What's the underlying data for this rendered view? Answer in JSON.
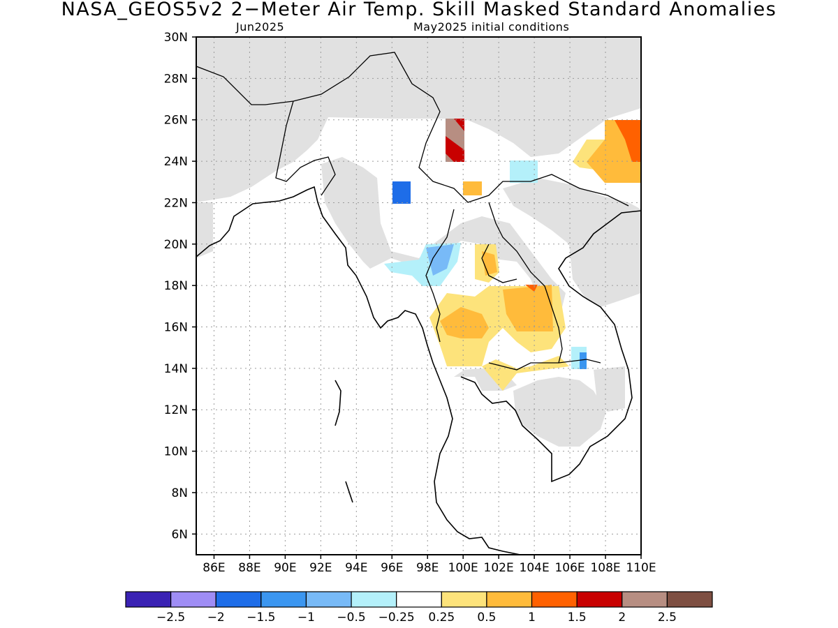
{
  "title": "NASA_GEOS5v2 2−Meter Air Temp. Skill Masked Standard Anomalies",
  "subtitle_left": "Jun2025",
  "subtitle_right": "May2025 initial conditions",
  "map": {
    "lon_range": [
      85,
      110
    ],
    "lat_range": [
      5,
      30
    ],
    "lat_ticks": [
      "30N",
      "28N",
      "26N",
      "24N",
      "22N",
      "20N",
      "18N",
      "16N",
      "14N",
      "12N",
      "10N",
      "8N",
      "6N"
    ],
    "lon_ticks": [
      "86E",
      "88E",
      "90E",
      "92E",
      "94E",
      "96E",
      "98E",
      "100E",
      "102E",
      "104E",
      "106E",
      "108E",
      "110E"
    ],
    "colors": {
      "masked": "#e1e1e1",
      "ocean": "#ffffff",
      "coast": "#000000"
    }
  },
  "colorbar": {
    "colors": [
      "#3a22b4",
      "#9f8df5",
      "#1e6de8",
      "#3b96f0",
      "#78baf7",
      "#b4f0fa",
      "#ffffff",
      "#fde37b",
      "#ffbb3b",
      "#ff6100",
      "#c80000",
      "#b78e82",
      "#7e4f42"
    ],
    "labels": [
      "−2.5",
      "−2",
      "−1.5",
      "−1",
      "−0.5",
      "−0.25",
      "0.25",
      "0.5",
      "1",
      "1.5",
      "2",
      "2.5"
    ]
  }
}
